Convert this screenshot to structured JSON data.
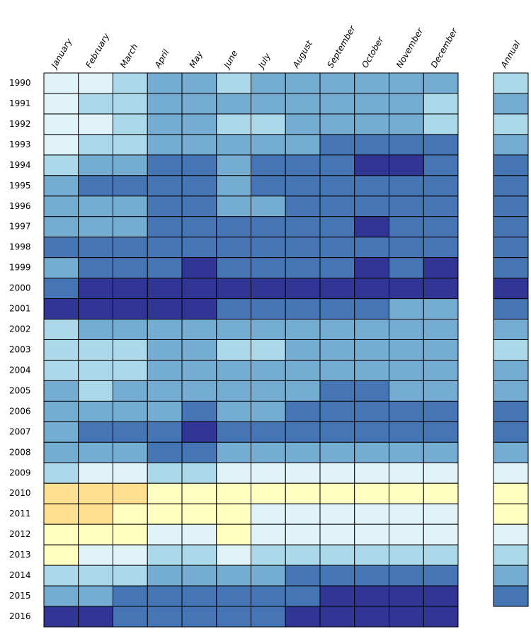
{
  "chart_data": {
    "type": "heatmap",
    "columns": [
      "January",
      "February",
      "March",
      "April",
      "May",
      "June",
      "July",
      "August",
      "September",
      "October",
      "November",
      "December"
    ],
    "annual_label": "Annual",
    "rows": [
      {
        "year": "1990",
        "colors": [
          "#e0f3f8",
          "#e0f3f8",
          "#abd9e9",
          "#74add1",
          "#74add1",
          "#abd9e9",
          "#74add1",
          "#74add1",
          "#74add1",
          "#74add1",
          "#74add1",
          "#74add1"
        ],
        "annual": "#abd9e9"
      },
      {
        "year": "1991",
        "colors": [
          "#e0f3f8",
          "#abd9e9",
          "#abd9e9",
          "#74add1",
          "#74add1",
          "#74add1",
          "#74add1",
          "#74add1",
          "#74add1",
          "#74add1",
          "#74add1",
          "#abd9e9"
        ],
        "annual": "#74add1"
      },
      {
        "year": "1992",
        "colors": [
          "#e0f3f8",
          "#e0f3f8",
          "#abd9e9",
          "#74add1",
          "#74add1",
          "#abd9e9",
          "#abd9e9",
          "#74add1",
          "#74add1",
          "#74add1",
          "#74add1",
          "#abd9e9"
        ],
        "annual": "#abd9e9"
      },
      {
        "year": "1993",
        "colors": [
          "#e0f3f8",
          "#abd9e9",
          "#abd9e9",
          "#74add1",
          "#74add1",
          "#74add1",
          "#74add1",
          "#74add1",
          "#4575b4",
          "#4575b4",
          "#4575b4",
          "#4575b4"
        ],
        "annual": "#74add1"
      },
      {
        "year": "1994",
        "colors": [
          "#abd9e9",
          "#74add1",
          "#74add1",
          "#4575b4",
          "#4575b4",
          "#74add1",
          "#4575b4",
          "#4575b4",
          "#4575b4",
          "#313695",
          "#313695",
          "#4575b4"
        ],
        "annual": "#4575b4"
      },
      {
        "year": "1995",
        "colors": [
          "#74add1",
          "#4575b4",
          "#4575b4",
          "#4575b4",
          "#4575b4",
          "#74add1",
          "#4575b4",
          "#4575b4",
          "#4575b4",
          "#4575b4",
          "#4575b4",
          "#4575b4"
        ],
        "annual": "#4575b4"
      },
      {
        "year": "1996",
        "colors": [
          "#74add1",
          "#74add1",
          "#74add1",
          "#4575b4",
          "#4575b4",
          "#74add1",
          "#74add1",
          "#4575b4",
          "#4575b4",
          "#4575b4",
          "#4575b4",
          "#4575b4"
        ],
        "annual": "#4575b4"
      },
      {
        "year": "1997",
        "colors": [
          "#74add1",
          "#74add1",
          "#74add1",
          "#4575b4",
          "#4575b4",
          "#4575b4",
          "#4575b4",
          "#4575b4",
          "#4575b4",
          "#313695",
          "#4575b4",
          "#4575b4"
        ],
        "annual": "#4575b4"
      },
      {
        "year": "1998",
        "colors": [
          "#4575b4",
          "#4575b4",
          "#4575b4",
          "#4575b4",
          "#4575b4",
          "#4575b4",
          "#4575b4",
          "#4575b4",
          "#4575b4",
          "#4575b4",
          "#4575b4",
          "#4575b4"
        ],
        "annual": "#4575b4"
      },
      {
        "year": "1999",
        "colors": [
          "#74add1",
          "#4575b4",
          "#4575b4",
          "#4575b4",
          "#313695",
          "#4575b4",
          "#4575b4",
          "#4575b4",
          "#4575b4",
          "#313695",
          "#4575b4",
          "#313695"
        ],
        "annual": "#4575b4"
      },
      {
        "year": "2000",
        "colors": [
          "#4575b4",
          "#313695",
          "#313695",
          "#313695",
          "#313695",
          "#313695",
          "#313695",
          "#313695",
          "#313695",
          "#313695",
          "#313695",
          "#313695"
        ],
        "annual": "#313695"
      },
      {
        "year": "2001",
        "colors": [
          "#313695",
          "#313695",
          "#313695",
          "#313695",
          "#313695",
          "#4575b4",
          "#4575b4",
          "#4575b4",
          "#4575b4",
          "#4575b4",
          "#74add1",
          "#74add1"
        ],
        "annual": "#4575b4"
      },
      {
        "year": "2002",
        "colors": [
          "#abd9e9",
          "#74add1",
          "#74add1",
          "#74add1",
          "#74add1",
          "#74add1",
          "#74add1",
          "#74add1",
          "#74add1",
          "#74add1",
          "#74add1",
          "#74add1"
        ],
        "annual": "#74add1"
      },
      {
        "year": "2003",
        "colors": [
          "#abd9e9",
          "#abd9e9",
          "#abd9e9",
          "#74add1",
          "#74add1",
          "#abd9e9",
          "#abd9e9",
          "#74add1",
          "#74add1",
          "#74add1",
          "#74add1",
          "#74add1"
        ],
        "annual": "#abd9e9"
      },
      {
        "year": "2004",
        "colors": [
          "#abd9e9",
          "#abd9e9",
          "#abd9e9",
          "#74add1",
          "#74add1",
          "#74add1",
          "#74add1",
          "#74add1",
          "#74add1",
          "#74add1",
          "#74add1",
          "#74add1"
        ],
        "annual": "#74add1"
      },
      {
        "year": "2005",
        "colors": [
          "#74add1",
          "#abd9e9",
          "#74add1",
          "#74add1",
          "#74add1",
          "#74add1",
          "#74add1",
          "#74add1",
          "#4575b4",
          "#4575b4",
          "#74add1",
          "#74add1"
        ],
        "annual": "#74add1"
      },
      {
        "year": "2006",
        "colors": [
          "#74add1",
          "#74add1",
          "#74add1",
          "#74add1",
          "#4575b4",
          "#74add1",
          "#74add1",
          "#4575b4",
          "#4575b4",
          "#4575b4",
          "#4575b4",
          "#4575b4"
        ],
        "annual": "#4575b4"
      },
      {
        "year": "2007",
        "colors": [
          "#74add1",
          "#4575b4",
          "#4575b4",
          "#4575b4",
          "#313695",
          "#4575b4",
          "#4575b4",
          "#4575b4",
          "#4575b4",
          "#4575b4",
          "#4575b4",
          "#4575b4"
        ],
        "annual": "#4575b4"
      },
      {
        "year": "2008",
        "colors": [
          "#74add1",
          "#74add1",
          "#74add1",
          "#4575b4",
          "#4575b4",
          "#74add1",
          "#74add1",
          "#74add1",
          "#74add1",
          "#74add1",
          "#74add1",
          "#74add1"
        ],
        "annual": "#74add1"
      },
      {
        "year": "2009",
        "colors": [
          "#abd9e9",
          "#e0f3f8",
          "#e0f3f8",
          "#abd9e9",
          "#abd9e9",
          "#e0f3f8",
          "#e0f3f8",
          "#e0f3f8",
          "#e0f3f8",
          "#e0f3f8",
          "#e0f3f8",
          "#e0f3f8"
        ],
        "annual": "#e0f3f8"
      },
      {
        "year": "2010",
        "colors": [
          "#fee090",
          "#fee090",
          "#fee090",
          "#ffffbf",
          "#ffffbf",
          "#ffffbf",
          "#ffffbf",
          "#ffffbf",
          "#ffffbf",
          "#ffffbf",
          "#ffffbf",
          "#ffffbf"
        ],
        "annual": "#ffffbf"
      },
      {
        "year": "2011",
        "colors": [
          "#fee090",
          "#fee090",
          "#ffffbf",
          "#ffffbf",
          "#ffffbf",
          "#ffffbf",
          "#e0f3f8",
          "#e0f3f8",
          "#e0f3f8",
          "#e0f3f8",
          "#e0f3f8",
          "#e0f3f8"
        ],
        "annual": "#ffffbf"
      },
      {
        "year": "2012",
        "colors": [
          "#ffffbf",
          "#ffffbf",
          "#ffffbf",
          "#e0f3f8",
          "#e0f3f8",
          "#ffffbf",
          "#e0f3f8",
          "#e0f3f8",
          "#e0f3f8",
          "#e0f3f8",
          "#e0f3f8",
          "#e0f3f8"
        ],
        "annual": "#e0f3f8"
      },
      {
        "year": "2013",
        "colors": [
          "#ffffbf",
          "#e0f3f8",
          "#e0f3f8",
          "#abd9e9",
          "#abd9e9",
          "#e0f3f8",
          "#abd9e9",
          "#abd9e9",
          "#abd9e9",
          "#abd9e9",
          "#abd9e9",
          "#abd9e9"
        ],
        "annual": "#abd9e9"
      },
      {
        "year": "2014",
        "colors": [
          "#abd9e9",
          "#abd9e9",
          "#abd9e9",
          "#74add1",
          "#74add1",
          "#74add1",
          "#74add1",
          "#4575b4",
          "#4575b4",
          "#4575b4",
          "#4575b4",
          "#4575b4"
        ],
        "annual": "#74add1"
      },
      {
        "year": "2015",
        "colors": [
          "#74add1",
          "#74add1",
          "#4575b4",
          "#4575b4",
          "#4575b4",
          "#4575b4",
          "#4575b4",
          "#4575b4",
          "#313695",
          "#313695",
          "#313695",
          "#313695"
        ],
        "annual": "#4575b4"
      },
      {
        "year": "2016",
        "colors": [
          "#313695",
          "#313695",
          "#4575b4",
          "#4575b4",
          "#4575b4",
          "#4575b4",
          "#4575b4",
          "#313695",
          "#313695",
          "#313695",
          "#313695",
          "#313695"
        ],
        "annual": null
      }
    ]
  }
}
